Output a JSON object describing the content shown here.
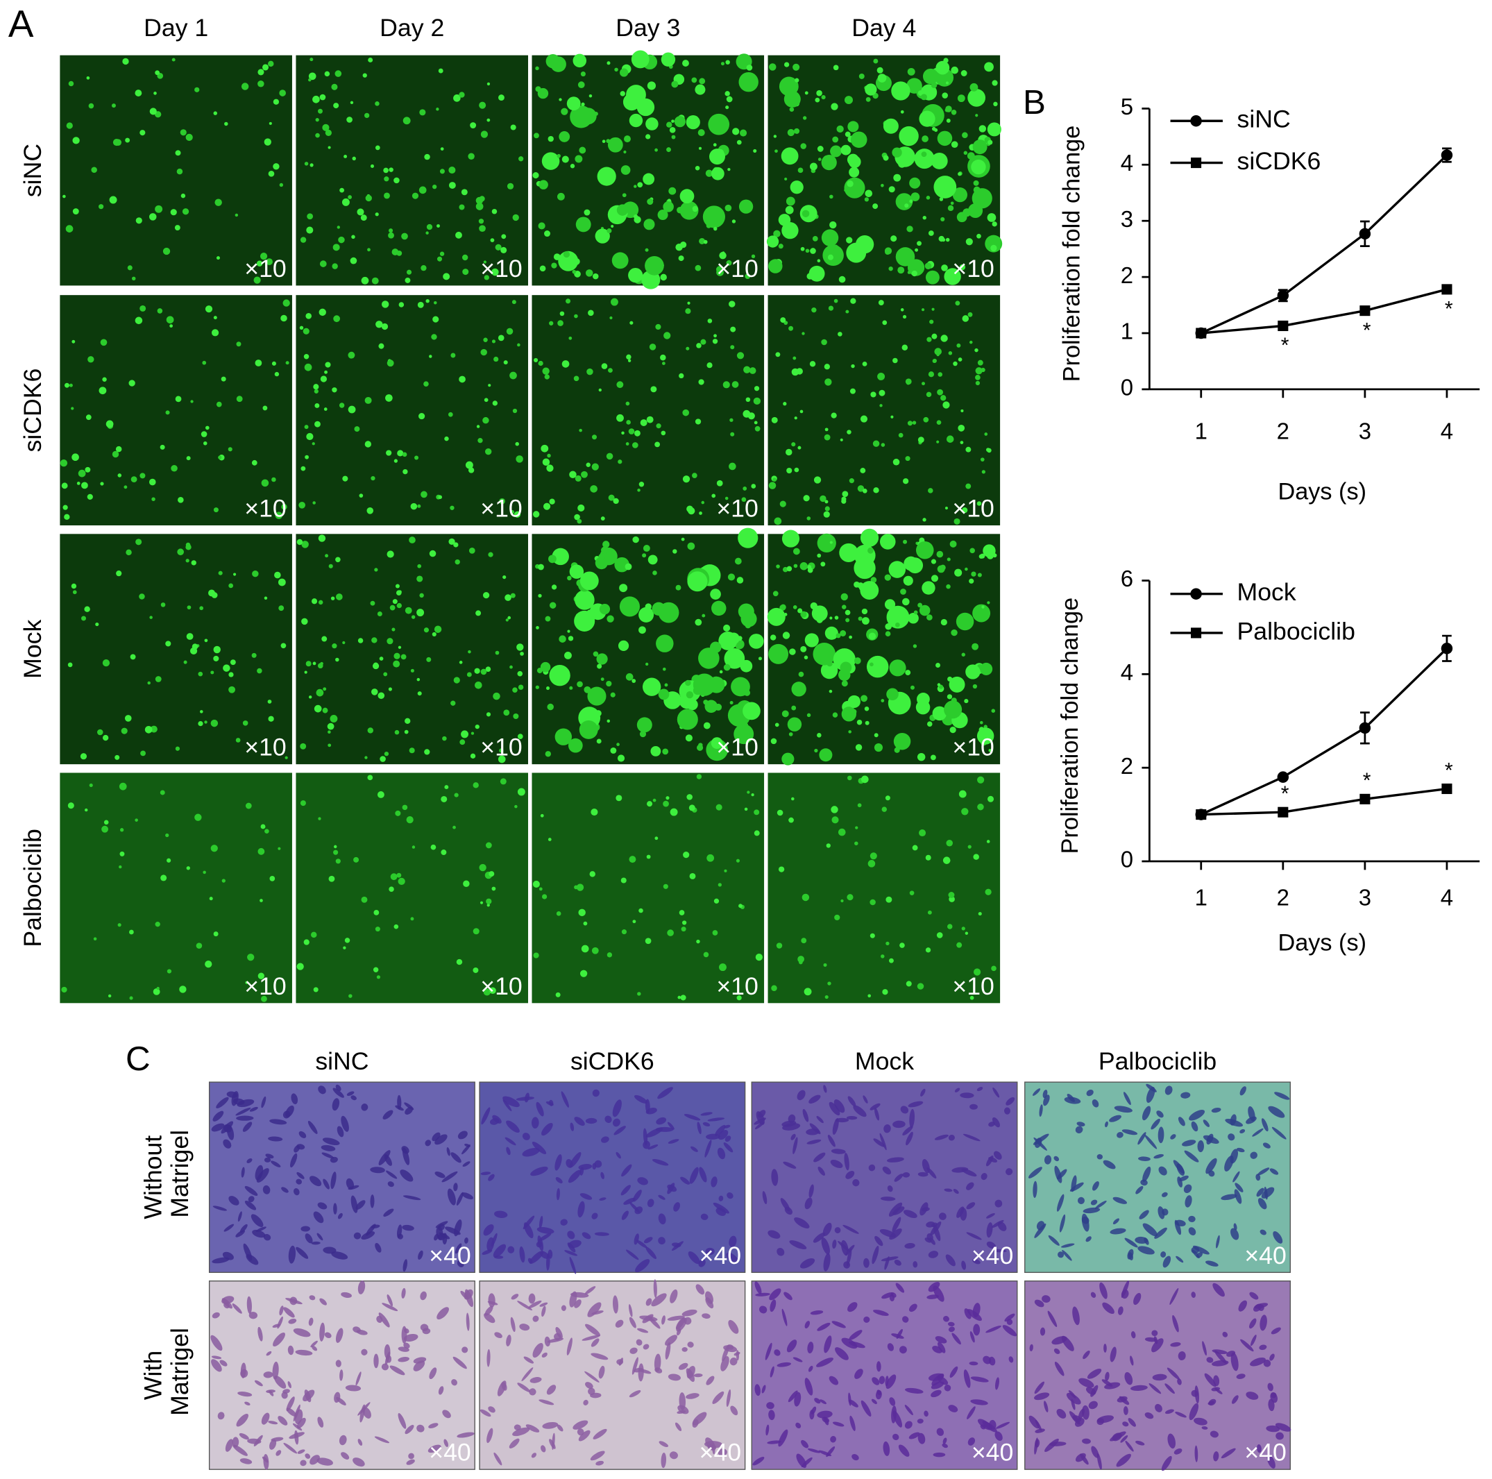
{
  "figure": {
    "panel_a": {
      "label": "A",
      "columns": [
        "Day 1",
        "Day 2",
        "Day 3",
        "Day 4"
      ],
      "rows": [
        "siNC",
        "siCDK6",
        "Mock",
        "Palbociclib"
      ],
      "magnification": "×10"
    },
    "panel_b": {
      "label": "B"
    },
    "panel_c": {
      "label": "C",
      "columns": [
        "siNC",
        "siCDK6",
        "Mock",
        "Palbociclib"
      ],
      "rows": [
        "Without Matrigel",
        "With Matrigel"
      ],
      "magnification": "×40"
    }
  },
  "chart_data": [
    {
      "type": "line",
      "ylabel": "Proliferation fold change",
      "xlabel": "Days (s)",
      "x": [
        1,
        2,
        3,
        4
      ],
      "xlim": [
        0.37,
        4.4
      ],
      "xticks": [
        1,
        2,
        3,
        4
      ],
      "ylim": [
        0,
        5
      ],
      "yticks": [
        0,
        1,
        2,
        3,
        4,
        5
      ],
      "legend": "upper left",
      "significance": [
        null,
        "*",
        "*",
        "*"
      ],
      "series": [
        {
          "name": "siNC",
          "color": "#000000",
          "marker": "circle",
          "values": [
            1,
            1.67,
            2.77,
            4.17
          ],
          "errors": [
            0.03,
            0.1,
            0.22,
            0.12
          ]
        },
        {
          "name": "siCDK6",
          "color": "#000000",
          "marker": "square",
          "values": [
            1,
            1.13,
            1.4,
            1.78
          ],
          "errors": [
            0.02,
            0.04,
            0.04,
            0.05
          ]
        }
      ]
    },
    {
      "type": "line",
      "ylabel": "Proliferation fold change",
      "xlabel": "Days (s)",
      "x": [
        1,
        2,
        3,
        4
      ],
      "xlim": [
        0.37,
        4.4
      ],
      "xticks": [
        1,
        2,
        3,
        4
      ],
      "ylim": [
        0,
        6
      ],
      "yticks": [
        0,
        2,
        4,
        6
      ],
      "legend": "upper left",
      "significance": [
        null,
        "*",
        "*",
        "*"
      ],
      "series": [
        {
          "name": "Mock",
          "color": "#000000",
          "marker": "circle",
          "values": [
            1,
            1.8,
            2.85,
            4.55
          ],
          "errors": [
            0.04,
            0.05,
            0.33,
            0.27
          ]
        },
        {
          "name": "Palbociclib",
          "color": "#000000",
          "marker": "square",
          "values": [
            1,
            1.05,
            1.33,
            1.55
          ],
          "errors": [
            0.02,
            0.04,
            0.05,
            0.05
          ]
        }
      ]
    }
  ]
}
